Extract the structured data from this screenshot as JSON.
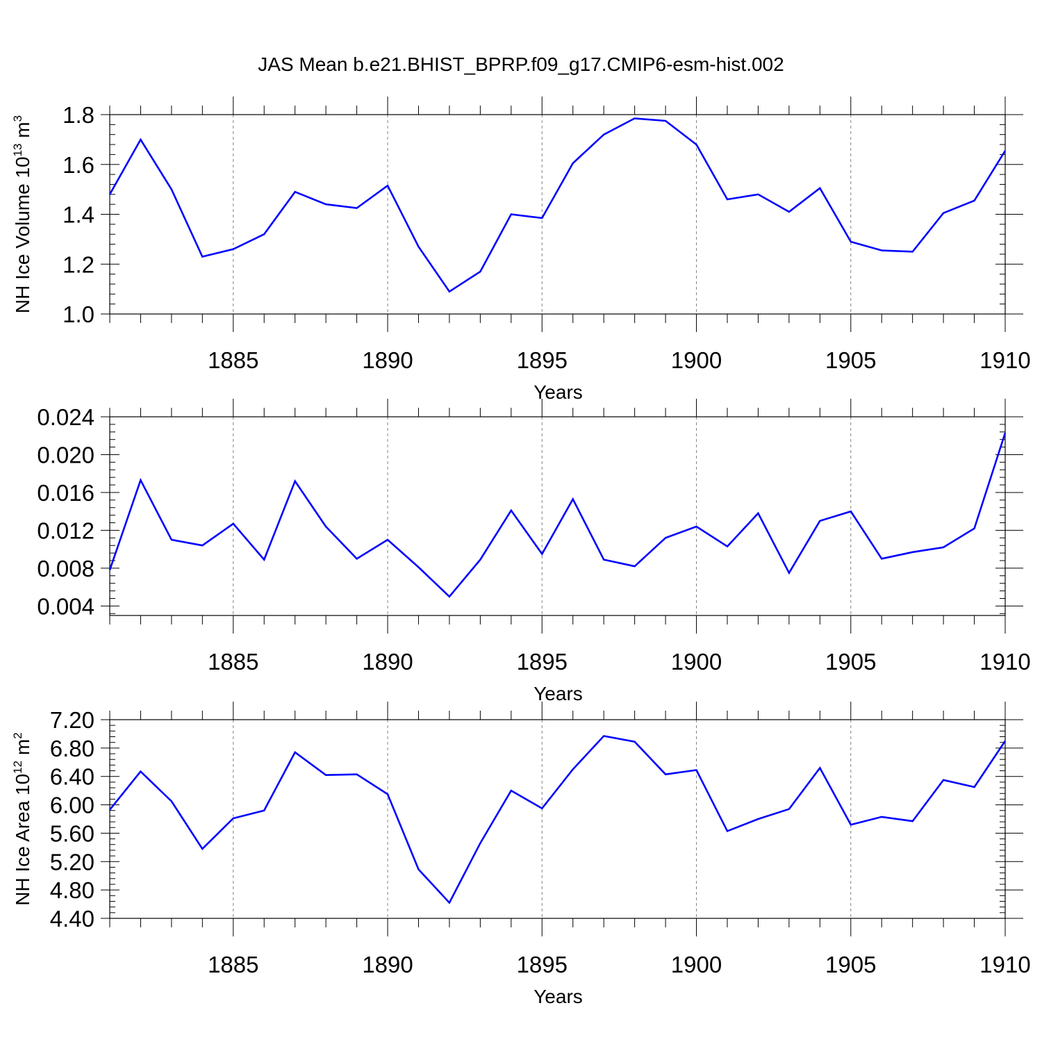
{
  "title": "JAS Mean b.e21.BHIST_BPRP.f09_g17.CMIP6-esm-hist.002",
  "colors": {
    "line": "#0000ff",
    "axis": "#000000",
    "grid": "#808080",
    "background": "#ffffff"
  },
  "chart_data": [
    {
      "type": "line",
      "id": "volume",
      "ylabel": "NH Ice Volume",
      "ylabel_unit": "10",
      "ylabel_exp": "13",
      "ylabel_unit2": "m",
      "ylabel_exp2": "3",
      "xlabel": "Years",
      "xlim": [
        1881,
        1910
      ],
      "ylim": [
        1.0,
        1.8
      ],
      "xticks": [
        1885,
        1890,
        1895,
        1900,
        1905,
        1910
      ],
      "xtick_labels": [
        "1885",
        "1890",
        "1895",
        "1900",
        "1905",
        "1910"
      ],
      "yticks": [
        1.0,
        1.2,
        1.4,
        1.6,
        1.8
      ],
      "ytick_labels": [
        "1.0",
        "1.2",
        "1.4",
        "1.6",
        "1.8"
      ],
      "x": [
        1881,
        1882,
        1883,
        1884,
        1885,
        1886,
        1887,
        1888,
        1889,
        1890,
        1891,
        1892,
        1893,
        1894,
        1895,
        1896,
        1897,
        1898,
        1899,
        1900,
        1901,
        1902,
        1903,
        1904,
        1905,
        1906,
        1907,
        1908,
        1909,
        1910
      ],
      "values": [
        1.48,
        1.7,
        1.5,
        1.23,
        1.26,
        1.32,
        1.49,
        1.44,
        1.425,
        1.515,
        1.27,
        1.09,
        1.17,
        1.4,
        1.385,
        1.605,
        1.72,
        1.785,
        1.775,
        1.68,
        1.46,
        1.48,
        1.41,
        1.505,
        1.29,
        1.255,
        1.25,
        1.405,
        1.455,
        1.655
      ]
    },
    {
      "type": "line",
      "id": "snow",
      "ylabel": "",
      "xlabel": "Years",
      "xlim": [
        1881,
        1910
      ],
      "ylim": [
        0.003,
        0.024
      ],
      "xticks": [
        1885,
        1890,
        1895,
        1900,
        1905,
        1910
      ],
      "xtick_labels": [
        "1885",
        "1890",
        "1895",
        "1900",
        "1905",
        "1910"
      ],
      "yticks": [
        0.004,
        0.008,
        0.012,
        0.016,
        0.02,
        0.024
      ],
      "ytick_labels": [
        "0.004",
        "0.008",
        "0.012",
        "0.016",
        "0.020",
        "0.024"
      ],
      "x": [
        1881,
        1882,
        1883,
        1884,
        1885,
        1886,
        1887,
        1888,
        1889,
        1890,
        1891,
        1892,
        1893,
        1894,
        1895,
        1896,
        1897,
        1898,
        1899,
        1900,
        1901,
        1902,
        1903,
        1904,
        1905,
        1906,
        1907,
        1908,
        1909,
        1910
      ],
      "values": [
        0.0078,
        0.0173,
        0.011,
        0.0104,
        0.0127,
        0.0089,
        0.0172,
        0.0124,
        0.009,
        0.011,
        0.0081,
        0.005,
        0.0089,
        0.0141,
        0.0095,
        0.0153,
        0.0089,
        0.0082,
        0.0112,
        0.0124,
        0.0103,
        0.0138,
        0.0075,
        0.013,
        0.014,
        0.009,
        0.0097,
        0.0102,
        0.0122,
        0.0223
      ]
    },
    {
      "type": "line",
      "id": "area",
      "ylabel": "NH Ice Area",
      "ylabel_unit": "10",
      "ylabel_exp": "12",
      "ylabel_unit2": "m",
      "ylabel_exp2": "2",
      "xlabel": "Years",
      "xlim": [
        1881,
        1910
      ],
      "ylim": [
        4.4,
        7.2
      ],
      "xticks": [
        1885,
        1890,
        1895,
        1900,
        1905,
        1910
      ],
      "xtick_labels": [
        "1885",
        "1890",
        "1895",
        "1900",
        "1905",
        "1910"
      ],
      "yticks": [
        4.4,
        4.8,
        5.2,
        5.6,
        6.0,
        6.4,
        6.8,
        7.2
      ],
      "ytick_labels": [
        "4.40",
        "4.80",
        "5.20",
        "5.60",
        "6.00",
        "6.40",
        "6.80",
        "7.20"
      ],
      "x": [
        1881,
        1882,
        1883,
        1884,
        1885,
        1886,
        1887,
        1888,
        1889,
        1890,
        1891,
        1892,
        1893,
        1894,
        1895,
        1896,
        1897,
        1898,
        1899,
        1900,
        1901,
        1902,
        1903,
        1904,
        1905,
        1906,
        1907,
        1908,
        1909,
        1910
      ],
      "values": [
        5.93,
        6.47,
        6.05,
        5.38,
        5.81,
        5.92,
        6.74,
        6.42,
        6.43,
        6.15,
        5.09,
        4.62,
        5.46,
        6.2,
        5.95,
        6.5,
        6.97,
        6.89,
        6.43,
        6.49,
        5.63,
        5.8,
        5.94,
        6.52,
        5.72,
        5.83,
        5.77,
        6.35,
        6.25,
        6.9
      ]
    }
  ]
}
